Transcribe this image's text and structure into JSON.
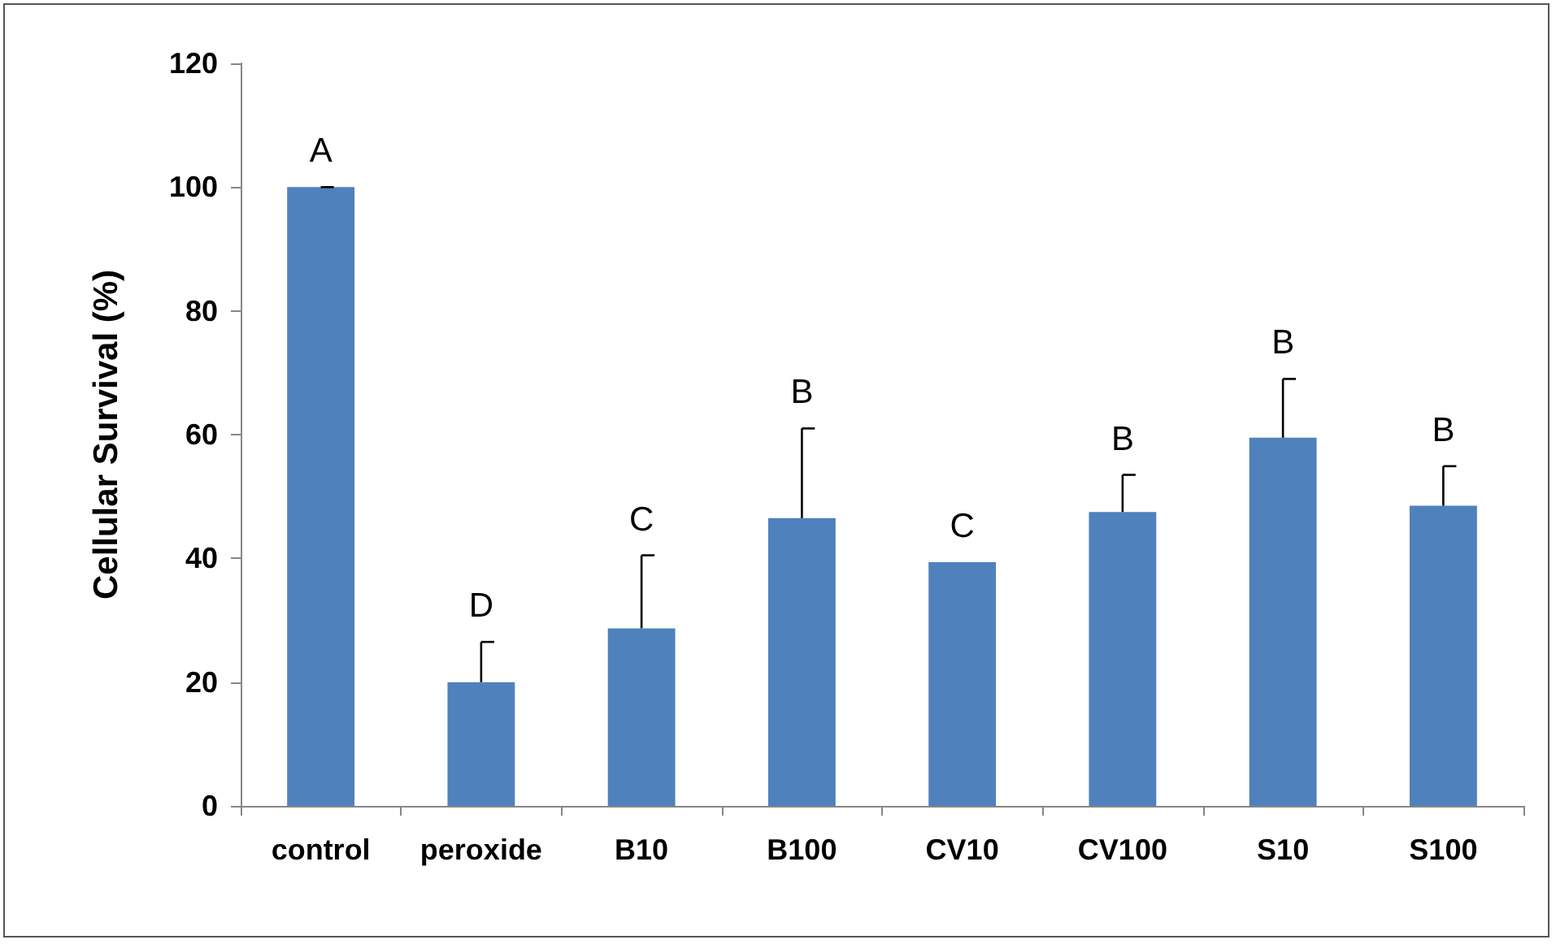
{
  "chart_data": {
    "type": "bar",
    "ylabel": "Cellular Survival (%)",
    "categories": [
      "control",
      "peroxide",
      "B10",
      "B100",
      "CV10",
      "CV100",
      "S10",
      "S100"
    ],
    "values": [
      100,
      20,
      28.7,
      46.5,
      39.4,
      47.5,
      59.5,
      48.5
    ],
    "errors": [
      [
        100,
        100
      ],
      [
        20,
        26.5
      ],
      [
        28.7,
        40.5
      ],
      [
        46.5,
        61
      ],
      null,
      [
        47.5,
        53.5
      ],
      [
        59.5,
        69
      ],
      [
        48.5,
        54.9
      ]
    ],
    "color": "#4f81bd",
    "ylim": [
      0,
      120
    ],
    "yticks": [
      0,
      20,
      40,
      60,
      80,
      100,
      120
    ],
    "grid": false,
    "annotations": [
      {
        "text": "A",
        "x": "control",
        "y": 100
      },
      {
        "text": "D",
        "x": "peroxide",
        "y": 26.5
      },
      {
        "text": "C",
        "x": "B10",
        "y": 40.5
      },
      {
        "text": "B",
        "x": "B100",
        "y": 61
      },
      {
        "text": "C",
        "x": "CV10",
        "y": 39.4
      },
      {
        "text": "B",
        "x": "CV100",
        "y": 53.5
      },
      {
        "text": "B",
        "x": "S10",
        "y": 69
      },
      {
        "text": "B",
        "x": "S100",
        "y": 54.9
      }
    ]
  }
}
